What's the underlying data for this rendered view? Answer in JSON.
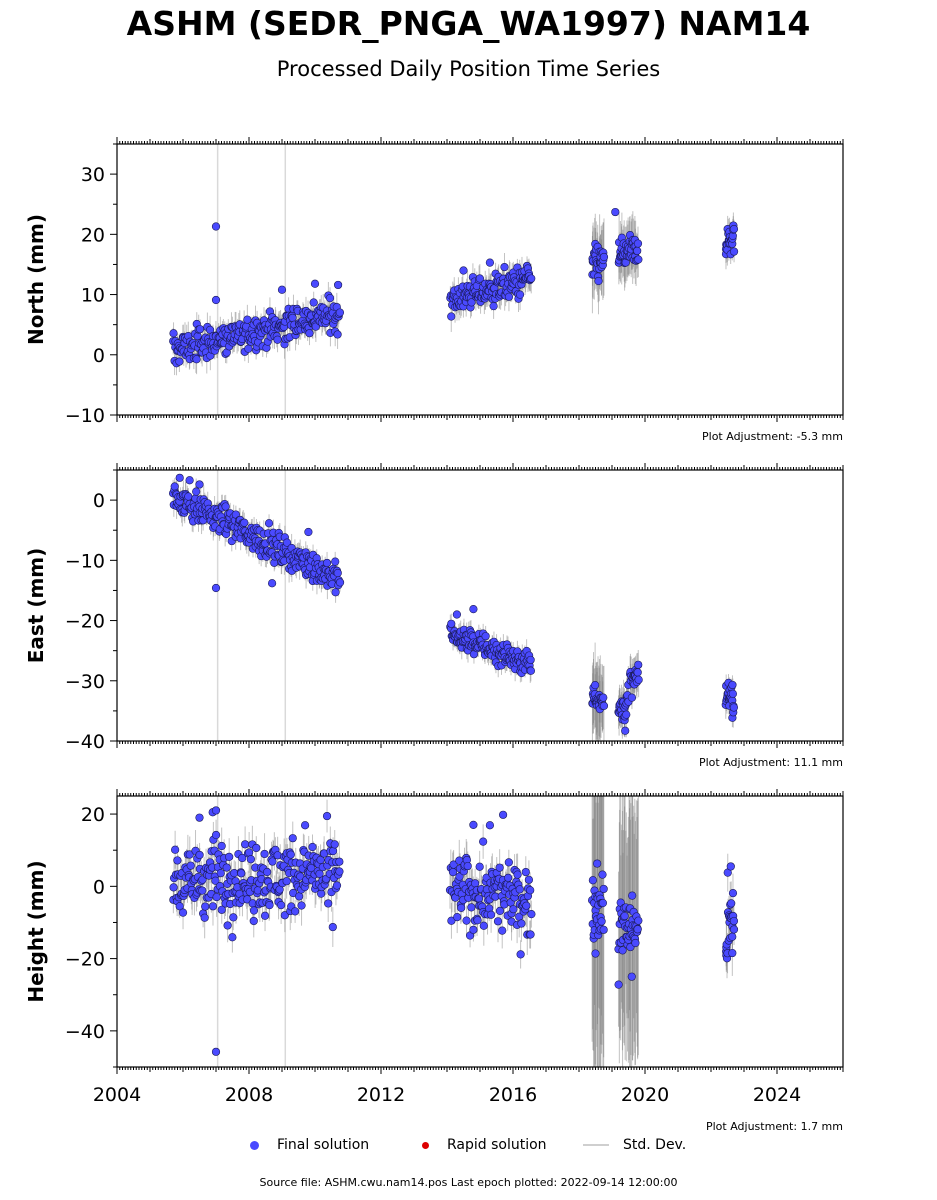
{
  "title": "ASHM (SEDR_PNGA_WA1997) NAM14",
  "subtitle": "Processed Daily Position Time Series",
  "legend": {
    "final": "Final solution",
    "rapid": "Rapid solution",
    "stddev": "Std. Dev."
  },
  "source_text": "Source file: ASHM.cwu.nam14.pos  Last epoch plotted: 2022-09-14 12:00:00",
  "colors": {
    "final": "#4a4aff",
    "rapid": "#dd0000",
    "stddev": "#bdbdbd",
    "outlier_line": "#d9d9d9"
  },
  "chart_data": {
    "type": "scatter",
    "x_axis": {
      "label": "",
      "range": [
        2004.0,
        2026.0
      ],
      "ticks": [
        2004,
        2008,
        2012,
        2016,
        2020,
        2024
      ],
      "tick_labels": [
        "2004",
        "2008",
        "2012",
        "2016",
        "2020",
        "2024"
      ]
    },
    "outlier_epochs": [
      2007.05,
      2009.1
    ],
    "panels": [
      {
        "name": "north",
        "ylabel": "North (mm)",
        "ylim": [
          -10,
          35
        ],
        "yticks": [
          -10,
          0,
          10,
          20,
          30
        ],
        "ytick_labels": [
          "−10",
          "0",
          "10",
          "20",
          "30"
        ],
        "adjustment": "Plot Adjustment: -5.3 mm",
        "segments": [
          {
            "x": [
              2005.7,
              2010.75
            ],
            "y": [
              0.8,
              6.9
            ],
            "noise": 1.4,
            "err": 2.0,
            "n": 260
          },
          {
            "x": [
              2014.1,
              2016.55
            ],
            "y": [
              9.2,
              12.6
            ],
            "noise": 1.3,
            "err": 2.0,
            "n": 140
          },
          {
            "x": [
              2018.4,
              2018.75
            ],
            "y": [
              14.8,
              15.6
            ],
            "noise": 1.6,
            "err": 5.0,
            "n": 30
          },
          {
            "x": [
              2019.2,
              2019.8
            ],
            "y": [
              16.8,
              17.2
            ],
            "noise": 1.3,
            "err": 4.0,
            "n": 45
          },
          {
            "x": [
              2022.45,
              2022.7
            ],
            "y": [
              18.2,
              19.6
            ],
            "noise": 1.5,
            "err": 2.2,
            "n": 25
          }
        ],
        "outliers": [
          [
            2007.0,
            21.3
          ],
          [
            2007.0,
            9.1
          ],
          [
            2009.0,
            10.8
          ],
          [
            2010.0,
            11.8
          ],
          [
            2010.7,
            11.6
          ],
          [
            2014.5,
            14.0
          ],
          [
            2015.3,
            15.3
          ],
          [
            2019.1,
            23.7
          ]
        ]
      },
      {
        "name": "east",
        "ylabel": "East (mm)",
        "ylim": [
          -40,
          5
        ],
        "yticks": [
          -40,
          -30,
          -20,
          -10,
          0
        ],
        "ytick_labels": [
          "−40",
          "−30",
          "−20",
          "−10",
          "0"
        ],
        "adjustment": "Plot Adjustment: 11.1 mm",
        "segments": [
          {
            "x": [
              2005.7,
              2010.75
            ],
            "y": [
              0.8,
              -13.3
            ],
            "noise": 1.2,
            "err": 1.8,
            "n": 260
          },
          {
            "x": [
              2014.1,
              2016.55
            ],
            "y": [
              -22.2,
              -27.2
            ],
            "noise": 1.0,
            "err": 1.6,
            "n": 140
          },
          {
            "x": [
              2018.4,
              2018.75
            ],
            "y": [
              -32.5,
              -33.0
            ],
            "noise": 1.2,
            "err": 5.5,
            "n": 30
          },
          {
            "x": [
              2019.2,
              2019.5
            ],
            "y": [
              -35.5,
              -33.0
            ],
            "noise": 1.3,
            "err": 3.0,
            "n": 25
          },
          {
            "x": [
              2019.55,
              2019.8
            ],
            "y": [
              -30.5,
              -29.0
            ],
            "noise": 1.1,
            "err": 2.5,
            "n": 20
          },
          {
            "x": [
              2022.45,
              2022.7
            ],
            "y": [
              -32.5,
              -33.5
            ],
            "noise": 1.2,
            "err": 2.0,
            "n": 25
          }
        ],
        "outliers": [
          [
            2005.9,
            3.7
          ],
          [
            2006.2,
            3.3
          ],
          [
            2006.5,
            2.6
          ],
          [
            2007.0,
            -14.6
          ],
          [
            2008.7,
            -13.8
          ],
          [
            2009.8,
            -5.3
          ],
          [
            2014.8,
            -18.1
          ],
          [
            2014.3,
            -19.0
          ],
          [
            2019.4,
            -38.3
          ]
        ]
      },
      {
        "name": "height",
        "ylabel": "Height (mm)",
        "ylim": [
          -50,
          25
        ],
        "yticks": [
          -40,
          -20,
          0,
          20
        ],
        "ytick_labels": [
          "−40",
          "−20",
          "0",
          "20"
        ],
        "adjustment": "Plot Adjustment: 1.7 mm",
        "segments": [
          {
            "x": [
              2005.7,
              2010.75
            ],
            "y": [
              2.0,
              3.0
            ],
            "noise": 5.5,
            "err": 4.5,
            "n": 260
          },
          {
            "x": [
              2014.1,
              2016.55
            ],
            "y": [
              -1.5,
              -3.5
            ],
            "noise": 5.0,
            "err": 4.5,
            "n": 140
          },
          {
            "x": [
              2018.4,
              2018.75
            ],
            "y": [
              -6.0,
              -5.0
            ],
            "noise": 4.0,
            "err": 40.0,
            "n": 30
          },
          {
            "x": [
              2019.2,
              2019.8
            ],
            "y": [
              -10.0,
              -12.0
            ],
            "noise": 4.5,
            "err": 30.0,
            "n": 45
          },
          {
            "x": [
              2022.45,
              2022.7
            ],
            "y": [
              -14.0,
              -10.0
            ],
            "noise": 6.0,
            "err": 5.0,
            "n": 25
          }
        ],
        "outliers": [
          [
            2007.0,
            -45.8
          ],
          [
            2006.9,
            20.5
          ],
          [
            2007.0,
            21.0
          ],
          [
            2006.5,
            19.0
          ],
          [
            2009.7,
            16.9
          ],
          [
            2015.7,
            19.8
          ],
          [
            2015.3,
            16.9
          ],
          [
            2014.8,
            17.0
          ],
          [
            2019.2,
            -27.2
          ],
          [
            2019.6,
            -25.0
          ],
          [
            2022.6,
            5.5
          ],
          [
            2018.55,
            6.3
          ],
          [
            2018.5,
            -18.6
          ]
        ]
      }
    ]
  }
}
